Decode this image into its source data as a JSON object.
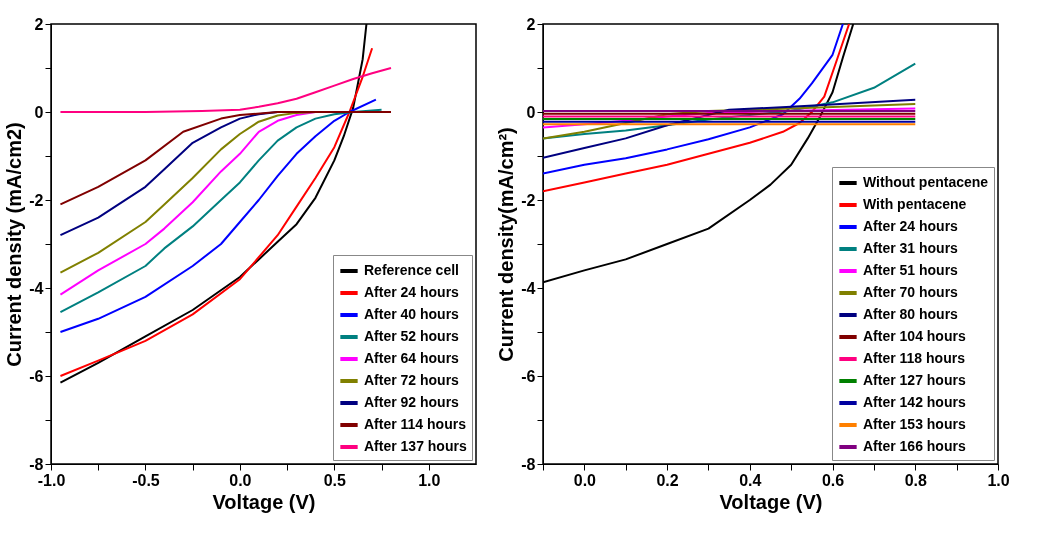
{
  "chart_data": [
    {
      "type": "line",
      "xlabel": "Voltage (V)",
      "ylabel": "Current density (mA/cm2)",
      "xlim": [
        -1.0,
        1.25
      ],
      "ylim": [
        -8,
        2
      ],
      "xticks": [
        {
          "value": -1,
          "label": "-1.0"
        },
        {
          "value": -0.75,
          "label": null
        },
        {
          "value": -0.5,
          "label": "-0.5"
        },
        {
          "value": -0.25,
          "label": null
        },
        {
          "value": 0,
          "label": "0.0"
        },
        {
          "value": 0.25,
          "label": null
        },
        {
          "value": 0.5,
          "label": "0.5"
        },
        {
          "value": 0.75,
          "label": null
        },
        {
          "value": 1,
          "label": "1.0"
        }
      ],
      "yticks": [
        2,
        {
          "value": 1,
          "label": null
        },
        0,
        {
          "value": -1,
          "label": null
        },
        -2,
        {
          "value": -3,
          "label": null
        },
        -4,
        {
          "value": -5,
          "label": null
        },
        -6,
        {
          "value": -7,
          "label": null
        },
        -8
      ],
      "legend": "bottom right",
      "series": [
        {
          "name": "Reference cell",
          "color": "#000000",
          "x": [
            -0.95,
            -0.75,
            -0.5,
            -0.25,
            0,
            0.1,
            0.2,
            0.3,
            0.4,
            0.5,
            0.55,
            0.6,
            0.65,
            0.67
          ],
          "values": [
            -6.15,
            -5.7,
            -5.1,
            -4.5,
            -3.75,
            -3.35,
            -2.95,
            -2.55,
            -1.95,
            -1.1,
            -0.55,
            0.1,
            1.2,
            2.0
          ]
        },
        {
          "name": "After 24  hours",
          "color": "#ff0000",
          "x": [
            -0.95,
            -0.75,
            -0.5,
            -0.25,
            0,
            0.1,
            0.2,
            0.3,
            0.4,
            0.5,
            0.58,
            0.65,
            0.7
          ],
          "values": [
            -6.0,
            -5.65,
            -5.2,
            -4.6,
            -3.8,
            -3.3,
            -2.8,
            -2.15,
            -1.5,
            -0.8,
            0,
            0.8,
            1.45
          ]
        },
        {
          "name": "After 40  hours",
          "color": "#0000ff",
          "x": [
            -0.95,
            -0.75,
            -0.5,
            -0.25,
            -0.1,
            0,
            0.1,
            0.2,
            0.3,
            0.4,
            0.5,
            0.58,
            0.72
          ],
          "values": [
            -5.0,
            -4.7,
            -4.2,
            -3.5,
            -3.0,
            -2.5,
            -2.0,
            -1.45,
            -0.95,
            -0.55,
            -0.2,
            0,
            0.28
          ]
        },
        {
          "name": "After 52 hours",
          "color": "#008080",
          "x": [
            -0.95,
            -0.75,
            -0.5,
            -0.4,
            -0.25,
            -0.1,
            0,
            0.1,
            0.2,
            0.3,
            0.4,
            0.5,
            0.6,
            0.75
          ],
          "values": [
            -4.55,
            -4.1,
            -3.5,
            -3.1,
            -2.6,
            -2.0,
            -1.6,
            -1.1,
            -0.65,
            -0.35,
            -0.15,
            -0.05,
            0,
            0.05
          ]
        },
        {
          "name": "After 64 hours",
          "color": "#ff00ff",
          "x": [
            -0.95,
            -0.75,
            -0.5,
            -0.4,
            -0.25,
            -0.1,
            0,
            0.1,
            0.2,
            0.3,
            0.4,
            0.8
          ],
          "values": [
            -4.15,
            -3.6,
            -3.0,
            -2.65,
            -2.05,
            -1.35,
            -0.95,
            -0.45,
            -0.2,
            -0.07,
            0,
            0
          ]
        },
        {
          "name": "After 72 hours",
          "color": "#808000",
          "x": [
            -0.95,
            -0.75,
            -0.5,
            -0.4,
            -0.25,
            -0.1,
            0,
            0.1,
            0.2,
            0.3,
            0.4,
            0.8
          ],
          "values": [
            -3.65,
            -3.2,
            -2.5,
            -2.1,
            -1.5,
            -0.85,
            -0.5,
            -0.22,
            -0.08,
            -0.02,
            0,
            0
          ]
        },
        {
          "name": "After 92 hours",
          "color": "#000080",
          "x": [
            -0.95,
            -0.75,
            -0.5,
            -0.4,
            -0.25,
            -0.1,
            0,
            0.1,
            0.2,
            0.8
          ],
          "values": [
            -2.8,
            -2.4,
            -1.7,
            -1.3,
            -0.7,
            -0.35,
            -0.15,
            -0.05,
            0,
            0
          ]
        },
        {
          "name": "After 114 hours",
          "color": "#800000",
          "x": [
            -0.95,
            -0.75,
            -0.5,
            -0.3,
            -0.1,
            0,
            0.2,
            0.8
          ],
          "values": [
            -2.1,
            -1.7,
            -1.1,
            -0.45,
            -0.15,
            -0.07,
            0,
            0
          ]
        },
        {
          "name": "After 137 hours",
          "color": "#ff0080",
          "x": [
            -0.95,
            -0.5,
            -0.2,
            0,
            0.1,
            0.2,
            0.3,
            0.4,
            0.5,
            0.6,
            0.7,
            0.8
          ],
          "values": [
            0,
            0,
            0.02,
            0.05,
            0.12,
            0.2,
            0.3,
            0.45,
            0.6,
            0.75,
            0.88,
            1.0
          ]
        }
      ]
    },
    {
      "type": "line",
      "xlabel": "Voltage (V)",
      "ylabel": "Current density(mA/cm²)",
      "xlim": [
        -0.1,
        1.0
      ],
      "ylim": [
        -8,
        2
      ],
      "xticks": [
        {
          "value": -0.1,
          "label": null
        },
        {
          "value": 0,
          "label": "0.0"
        },
        {
          "value": 0.1,
          "label": null
        },
        0.2,
        {
          "value": 0.3,
          "label": null
        },
        0.4,
        {
          "value": 0.5,
          "label": null
        },
        0.6,
        {
          "value": 0.7,
          "label": null
        },
        0.8,
        {
          "value": 0.9,
          "label": null
        },
        {
          "value": 1,
          "label": "1.0"
        }
      ],
      "yticks": [
        2,
        {
          "value": 1,
          "label": null
        },
        0,
        {
          "value": -1,
          "label": null
        },
        -2,
        {
          "value": -3,
          "label": null
        },
        -4,
        {
          "value": -5,
          "label": null
        },
        -6,
        {
          "value": -7,
          "label": null
        },
        -8
      ],
      "legend": "bottom right",
      "series": [
        {
          "name": "Without pentacene",
          "color": "#000000",
          "x": [
            -0.1,
            0,
            0.1,
            0.2,
            0.3,
            0.4,
            0.45,
            0.5,
            0.54,
            0.57,
            0.6,
            0.625,
            0.65
          ],
          "values": [
            -3.87,
            -3.6,
            -3.35,
            -3.0,
            -2.65,
            -2.0,
            -1.65,
            -1.2,
            -0.6,
            -0.1,
            0.45,
            1.24,
            2.0
          ]
        },
        {
          "name": "With pentacene",
          "color": "#ff0000",
          "x": [
            -0.1,
            0,
            0.1,
            0.2,
            0.3,
            0.4,
            0.48,
            0.52,
            0.55,
            0.58,
            0.61,
            0.64
          ],
          "values": [
            -1.8,
            -1.6,
            -1.4,
            -1.2,
            -0.95,
            -0.7,
            -0.45,
            -0.25,
            0,
            0.35,
            1.17,
            2.0
          ]
        },
        {
          "name": "After 24 hours",
          "color": "#0000ff",
          "x": [
            -0.1,
            0,
            0.1,
            0.2,
            0.3,
            0.4,
            0.48,
            0.52,
            0.55,
            0.6,
            0.625
          ],
          "values": [
            -1.4,
            -1.2,
            -1.05,
            -0.85,
            -0.62,
            -0.35,
            -0.05,
            0.3,
            0.65,
            1.3,
            2.0
          ]
        },
        {
          "name": "After 31 hours",
          "color": "#008080",
          "x": [
            -0.1,
            0,
            0.1,
            0.2,
            0.3,
            0.4,
            0.5,
            0.6,
            0.7,
            0.8
          ],
          "values": [
            -0.6,
            -0.5,
            -0.42,
            -0.3,
            -0.17,
            -0.07,
            0.03,
            0.22,
            0.55,
            1.1
          ]
        },
        {
          "name": "After 51 hours",
          "color": "#ff00ff",
          "x": [
            -0.1,
            0,
            0.1,
            0.2,
            0.3,
            0.5,
            0.8
          ],
          "values": [
            -0.35,
            -0.28,
            -0.2,
            -0.1,
            -0.02,
            0.03,
            0.08
          ]
        },
        {
          "name": "After 70 hours",
          "color": "#808000",
          "x": [
            -0.1,
            0,
            0.1,
            0.2,
            0.3,
            0.5,
            0.8
          ],
          "values": [
            -0.6,
            -0.45,
            -0.25,
            -0.05,
            0.02,
            0.08,
            0.18
          ]
        },
        {
          "name": "After 80 hours",
          "color": "#000080",
          "x": [
            -0.1,
            0,
            0.1,
            0.2,
            0.35,
            0.5,
            0.8
          ],
          "values": [
            -1.04,
            -0.82,
            -0.6,
            -0.3,
            0.05,
            0.12,
            0.28
          ]
        },
        {
          "name": "After 104 hours",
          "color": "#800000",
          "x": [
            -0.1,
            0.8
          ],
          "values": [
            -0.04,
            -0.04
          ]
        },
        {
          "name": "After 118 hours",
          "color": "#ff0080",
          "x": [
            -0.1,
            0.8
          ],
          "values": [
            -0.1,
            -0.1
          ]
        },
        {
          "name": "After 127 hours",
          "color": "#008000",
          "x": [
            -0.1,
            0.8
          ],
          "values": [
            -0.16,
            -0.16
          ]
        },
        {
          "name": "After 142 hours",
          "color": "#0000a0",
          "x": [
            -0.1,
            0.8
          ],
          "values": [
            -0.22,
            -0.22
          ]
        },
        {
          "name": "After 153 hours",
          "color": "#ff8000",
          "x": [
            -0.1,
            0.8
          ],
          "values": [
            -0.28,
            -0.28
          ]
        },
        {
          "name": "After 166 hours",
          "color": "#800080",
          "x": [
            -0.1,
            0.8
          ],
          "values": [
            0.02,
            0.02
          ]
        }
      ]
    }
  ]
}
